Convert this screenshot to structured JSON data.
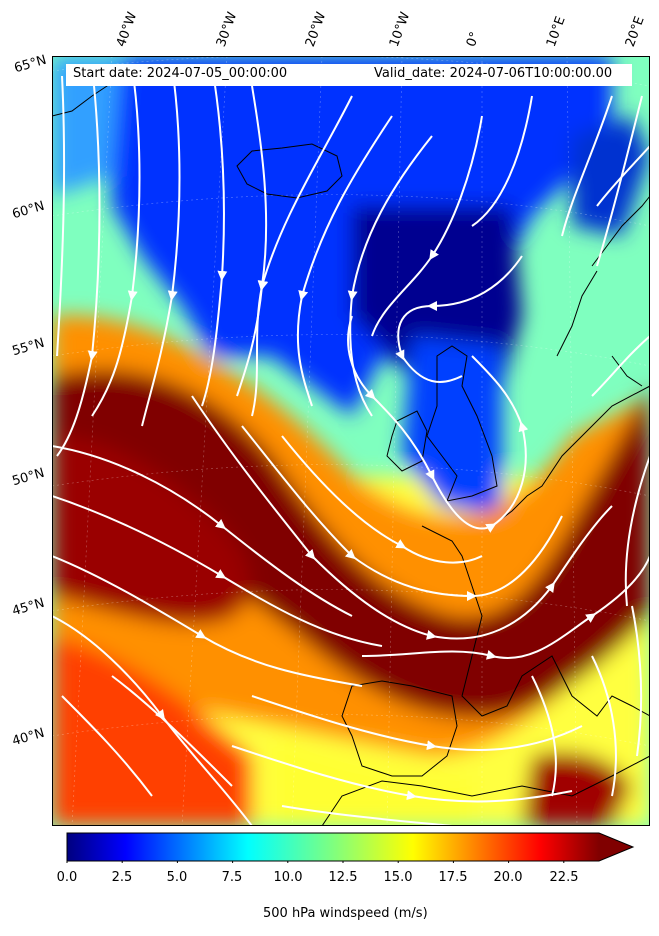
{
  "map": {
    "variable_label": "500 hPa windspeed (m/s)",
    "start_date": "Start date: 2024-07-05_00:00:00",
    "valid_date": "Valid_date: 2024-07-06T10:00:00.00",
    "lon_labels": [
      "40°W",
      "30°W",
      "20°W",
      "10°W",
      "0°",
      "10°E",
      "20°E"
    ],
    "lat_labels": [
      "65°N",
      "60°N",
      "55°N",
      "50°N",
      "45°N",
      "40°N"
    ],
    "colormap": "jet",
    "colors": {
      "calm": "#00007f",
      "moderate": "#00ffff",
      "strong": "#ffff00",
      "jet_core": "#800000",
      "streamlines": "#ffffff",
      "coastline": "#000000"
    }
  },
  "colorbar": {
    "min": 0,
    "max": 25,
    "extend": "max",
    "tick_labels": [
      "0.0",
      "2.5",
      "5.0",
      "7.5",
      "10.0",
      "12.5",
      "15.0",
      "17.5",
      "20.0",
      "22.5"
    ]
  }
}
